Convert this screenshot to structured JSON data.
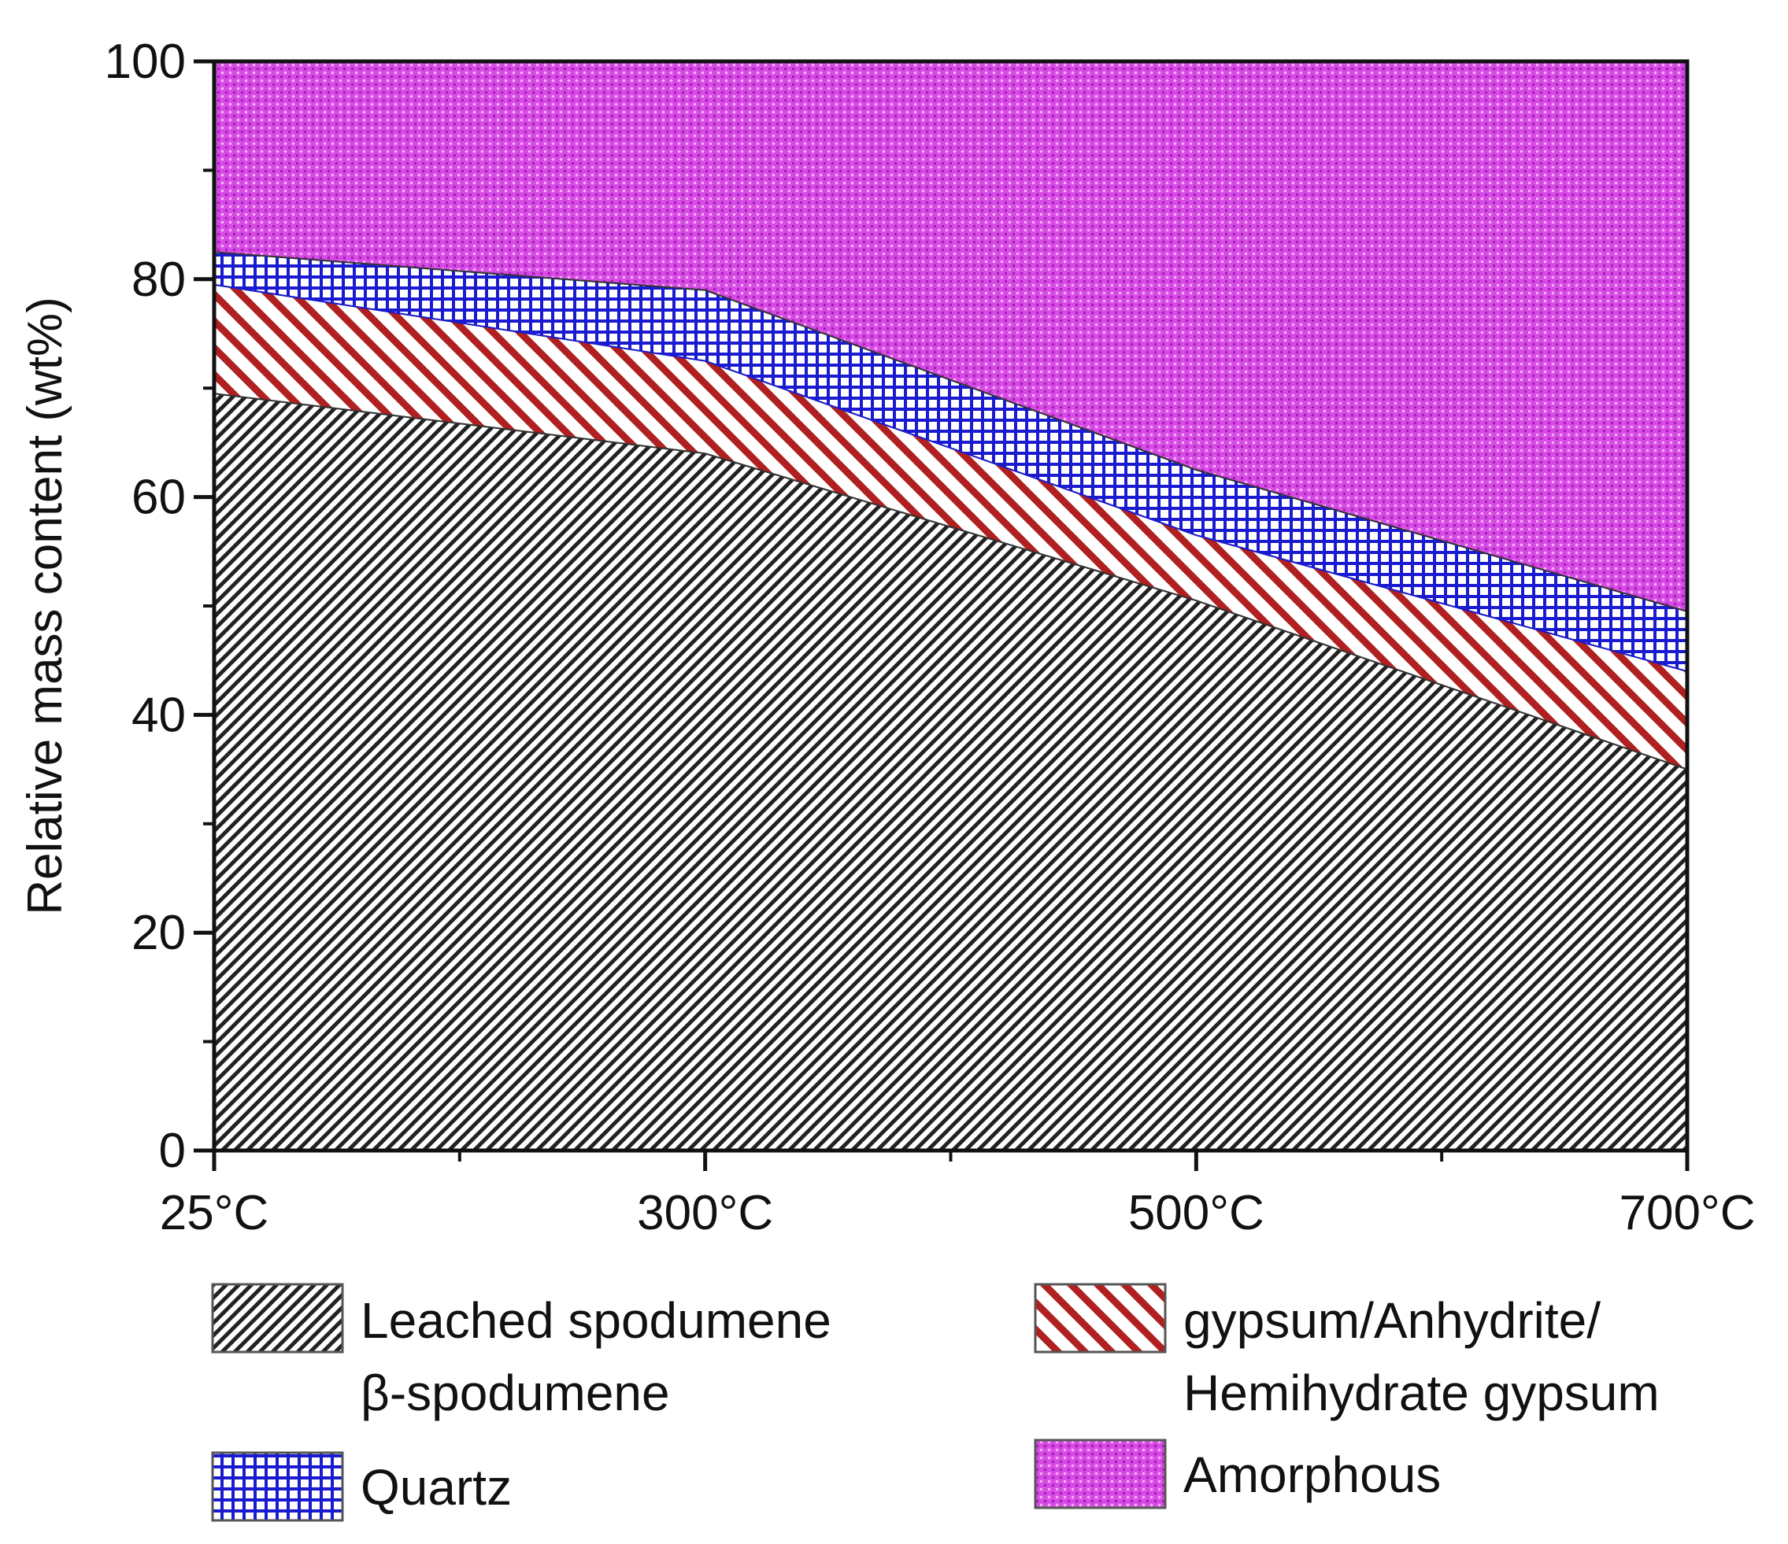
{
  "chart_data": {
    "type": "area",
    "stacked": true,
    "title": "",
    "xlabel": "",
    "ylabel": "Relative mass content (wt%)",
    "categories": [
      "25°C",
      "300°C",
      "500°C",
      "700°C"
    ],
    "x_values": [
      25,
      300,
      500,
      700
    ],
    "ylim": [
      0,
      100
    ],
    "y_ticks": [
      "0",
      "20",
      "40",
      "60",
      "80",
      "100"
    ],
    "series": [
      {
        "name": "Leached spodumene β-spodumene",
        "legend_lines": [
          "Leached spodumene",
          "β-spodumene"
        ],
        "values": [
          69.5,
          64,
          50.5,
          35
        ],
        "pattern": "dense-diagonal",
        "color": "#222222"
      },
      {
        "name": "gypsum/Anhydrite/ Hemihydrate gypsum",
        "legend_lines": [
          "gypsum/Anhydrite/",
          "Hemihydrate gypsum"
        ],
        "values": [
          10,
          8.5,
          6,
          9
        ],
        "pattern": "wide-diagonal",
        "color": "#b02020"
      },
      {
        "name": "Quartz",
        "legend_lines": [
          "Quartz"
        ],
        "values": [
          3,
          6.5,
          6,
          5.5
        ],
        "pattern": "grid",
        "color": "#1a1ad0"
      },
      {
        "name": "Amorphous",
        "legend_lines": [
          "Amorphous"
        ],
        "values": [
          17.5,
          21,
          37.5,
          50.5
        ],
        "pattern": "dots",
        "color": "#d030e0"
      }
    ],
    "legend_position": "bottom"
  }
}
